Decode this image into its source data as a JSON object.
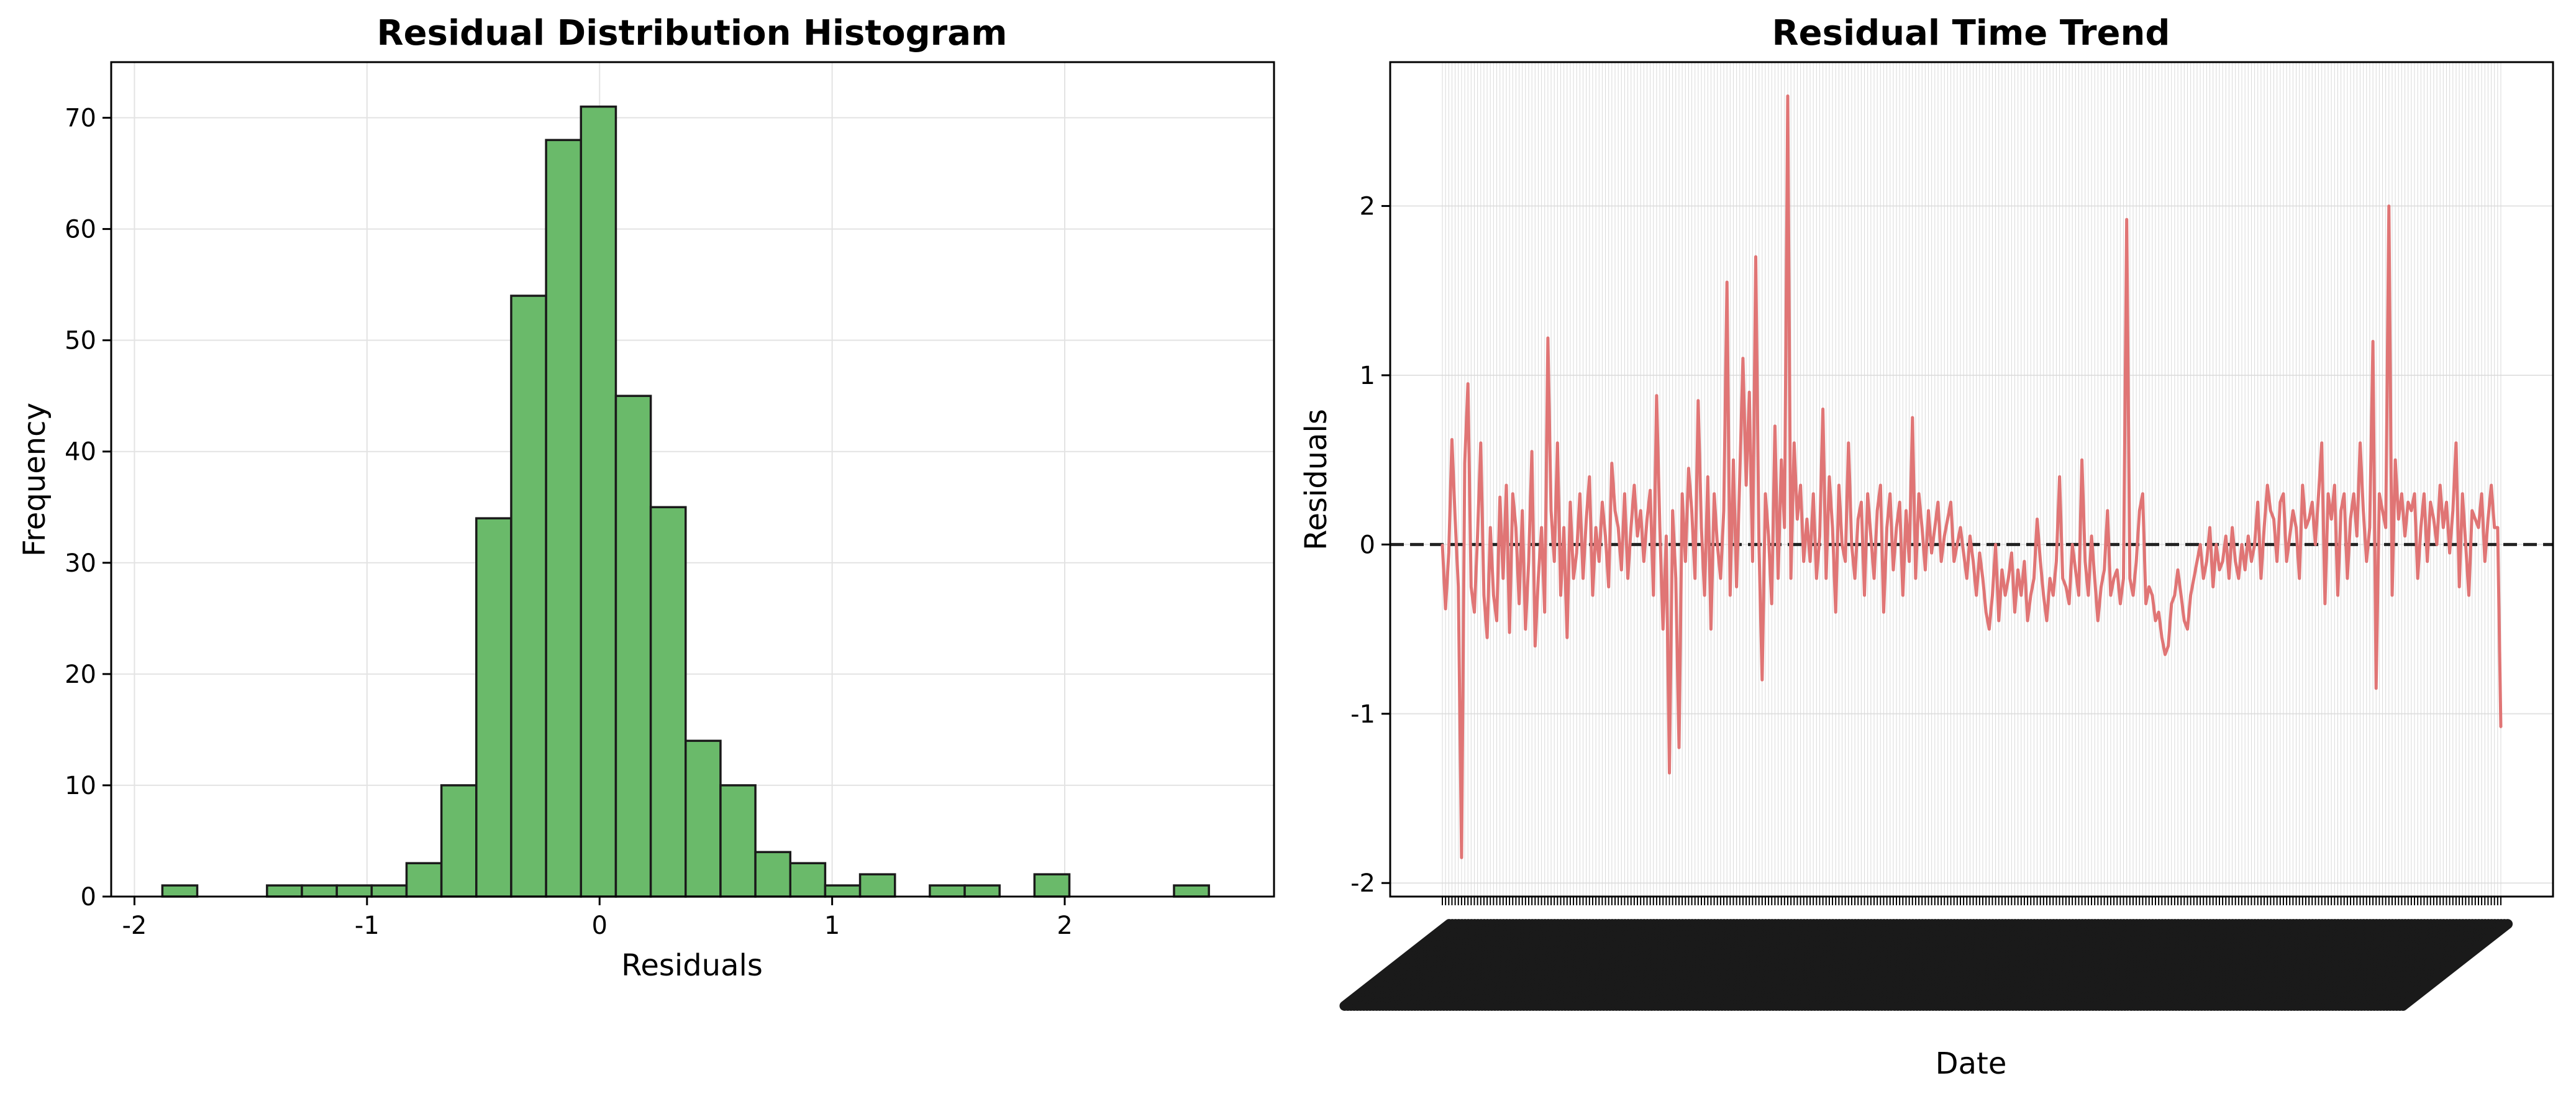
{
  "chart_data": [
    {
      "type": "bar",
      "title": "Residual Distribution Histogram",
      "xlabel": "Residuals",
      "ylabel": "Frequency",
      "xlim": [
        -2.1,
        2.9
      ],
      "ylim": [
        0,
        75
      ],
      "xticks": [
        -2,
        -1,
        0,
        1,
        2
      ],
      "yticks": [
        0,
        10,
        20,
        30,
        40,
        50,
        60,
        70
      ],
      "grid": true,
      "bar_color": "#6aba6a",
      "edge_color": "#1a1a1a",
      "bin_edges": [
        -1.88,
        -1.73,
        -1.58,
        -1.43,
        -1.28,
        -1.13,
        -0.98,
        -0.83,
        -0.68,
        -0.53,
        -0.38,
        -0.23,
        -0.08,
        0.07,
        0.22,
        0.37,
        0.52,
        0.67,
        0.82,
        0.97,
        1.12,
        1.27,
        1.42,
        1.57,
        1.72,
        1.87,
        2.02,
        2.17,
        2.32,
        2.47,
        2.62,
        2.77
      ],
      "values": [
        1,
        0,
        0,
        1,
        1,
        1,
        1,
        3,
        10,
        34,
        54,
        68,
        71,
        45,
        35,
        14,
        10,
        4,
        3,
        1,
        2,
        0,
        1,
        1,
        0,
        2,
        0,
        0,
        0,
        1,
        0
      ]
    },
    {
      "type": "line",
      "title": "Residual Time Trend",
      "xlabel": "Date",
      "ylabel": "Residuals",
      "ylim": [
        -2.08,
        2.85
      ],
      "yticks": [
        -2,
        -1,
        0,
        1,
        2
      ],
      "grid": true,
      "line_color": "#e07575",
      "zero_line": {
        "y": 0,
        "style": "dashed",
        "color": "#222222"
      },
      "x_index_count": 300,
      "x_tick_labels_legible": false,
      "series": [
        {
          "values": [
            0.0,
            -0.38,
            -0.05,
            0.62,
            0.15,
            -0.25,
            -1.85,
            0.48,
            0.95,
            -0.25,
            -0.4,
            0.05,
            0.6,
            -0.3,
            -0.55,
            0.1,
            -0.3,
            -0.45,
            0.28,
            -0.2,
            0.35,
            -0.52,
            0.3,
            0.1,
            -0.35,
            0.2,
            -0.5,
            -0.1,
            0.55,
            -0.6,
            -0.2,
            0.1,
            -0.4,
            1.22,
            0.2,
            -0.1,
            0.6,
            -0.3,
            0.1,
            -0.55,
            0.25,
            -0.2,
            -0.05,
            0.3,
            -0.2,
            0.15,
            0.4,
            -0.3,
            0.1,
            -0.1,
            0.25,
            0.05,
            -0.25,
            0.48,
            0.2,
            0.1,
            -0.15,
            0.3,
            -0.2,
            0.1,
            0.35,
            0.05,
            0.2,
            -0.1,
            0.15,
            0.32,
            -0.3,
            0.88,
            0.1,
            -0.5,
            0.05,
            -1.35,
            0.2,
            -0.2,
            -1.2,
            0.3,
            -0.1,
            0.45,
            0.2,
            -0.2,
            0.85,
            0.1,
            -0.3,
            0.4,
            -0.5,
            0.3,
            0.0,
            -0.2,
            0.2,
            1.55,
            -0.3,
            0.5,
            -0.25,
            0.4,
            1.1,
            0.35,
            0.9,
            -0.1,
            1.7,
            0.0,
            -0.8,
            0.3,
            0.05,
            -0.35,
            0.7,
            -0.2,
            0.5,
            0.1,
            2.65,
            -0.2,
            0.6,
            0.15,
            0.35,
            -0.1,
            0.15,
            -0.1,
            0.3,
            -0.2,
            0.05,
            0.8,
            -0.2,
            0.4,
            0.1,
            -0.4,
            0.35,
            0.0,
            -0.1,
            0.6,
            0.0,
            -0.2,
            0.15,
            0.25,
            -0.3,
            0.3,
            0.05,
            -0.2,
            0.2,
            0.35,
            -0.4,
            0.1,
            0.3,
            -0.15,
            0.1,
            0.25,
            -0.3,
            0.2,
            -0.1,
            0.75,
            -0.2,
            0.3,
            0.1,
            -0.15,
            0.2,
            -0.05,
            0.1,
            0.25,
            -0.1,
            0.05,
            0.15,
            0.25,
            -0.1,
            0.0,
            0.1,
            -0.05,
            -0.2,
            0.05,
            -0.1,
            -0.3,
            -0.05,
            -0.2,
            -0.4,
            -0.5,
            -0.3,
            0.0,
            -0.45,
            -0.15,
            -0.3,
            -0.2,
            -0.05,
            -0.4,
            -0.15,
            -0.3,
            -0.1,
            -0.45,
            -0.3,
            -0.2,
            0.15,
            -0.1,
            -0.3,
            -0.45,
            -0.2,
            -0.3,
            -0.1,
            0.4,
            -0.2,
            -0.25,
            -0.35,
            0.0,
            -0.15,
            -0.3,
            0.5,
            -0.1,
            -0.3,
            0.05,
            -0.2,
            -0.45,
            -0.25,
            -0.15,
            0.2,
            -0.3,
            -0.2,
            -0.15,
            -0.35,
            -0.2,
            1.92,
            -0.2,
            -0.3,
            -0.1,
            0.2,
            0.3,
            -0.35,
            -0.25,
            -0.3,
            -0.45,
            -0.4,
            -0.55,
            -0.65,
            -0.6,
            -0.35,
            -0.3,
            -0.15,
            -0.3,
            -0.45,
            -0.5,
            -0.3,
            -0.2,
            -0.1,
            0.0,
            -0.2,
            -0.1,
            0.1,
            -0.25,
            0.0,
            -0.15,
            -0.1,
            0.05,
            -0.2,
            0.1,
            -0.1,
            -0.2,
            0.0,
            -0.15,
            0.05,
            -0.1,
            0.0,
            0.25,
            -0.2,
            0.1,
            0.35,
            0.2,
            0.15,
            -0.1,
            0.25,
            0.3,
            -0.1,
            0.05,
            0.2,
            0.1,
            -0.2,
            0.35,
            0.1,
            0.15,
            0.25,
            0.0,
            0.3,
            0.6,
            -0.35,
            0.3,
            0.15,
            0.35,
            -0.3,
            0.2,
            0.3,
            -0.2,
            0.15,
            0.3,
            0.05,
            0.6,
            0.2,
            -0.1,
            0.1,
            1.2,
            -0.85,
            0.3,
            0.2,
            0.1,
            2.0,
            -0.3,
            0.5,
            0.15,
            0.3,
            0.05,
            0.25,
            0.2,
            0.3,
            -0.2,
            0.1,
            0.3,
            -0.1,
            0.25,
            0.15,
            0.0,
            0.35,
            0.1,
            0.25,
            -0.05,
            0.2,
            0.6,
            -0.25,
            0.3,
            0.0,
            -0.3,
            0.2,
            0.15,
            0.1,
            0.3,
            -0.1,
            0.15,
            0.35,
            0.1,
            0.1,
            -1.08
          ]
        }
      ]
    }
  ]
}
